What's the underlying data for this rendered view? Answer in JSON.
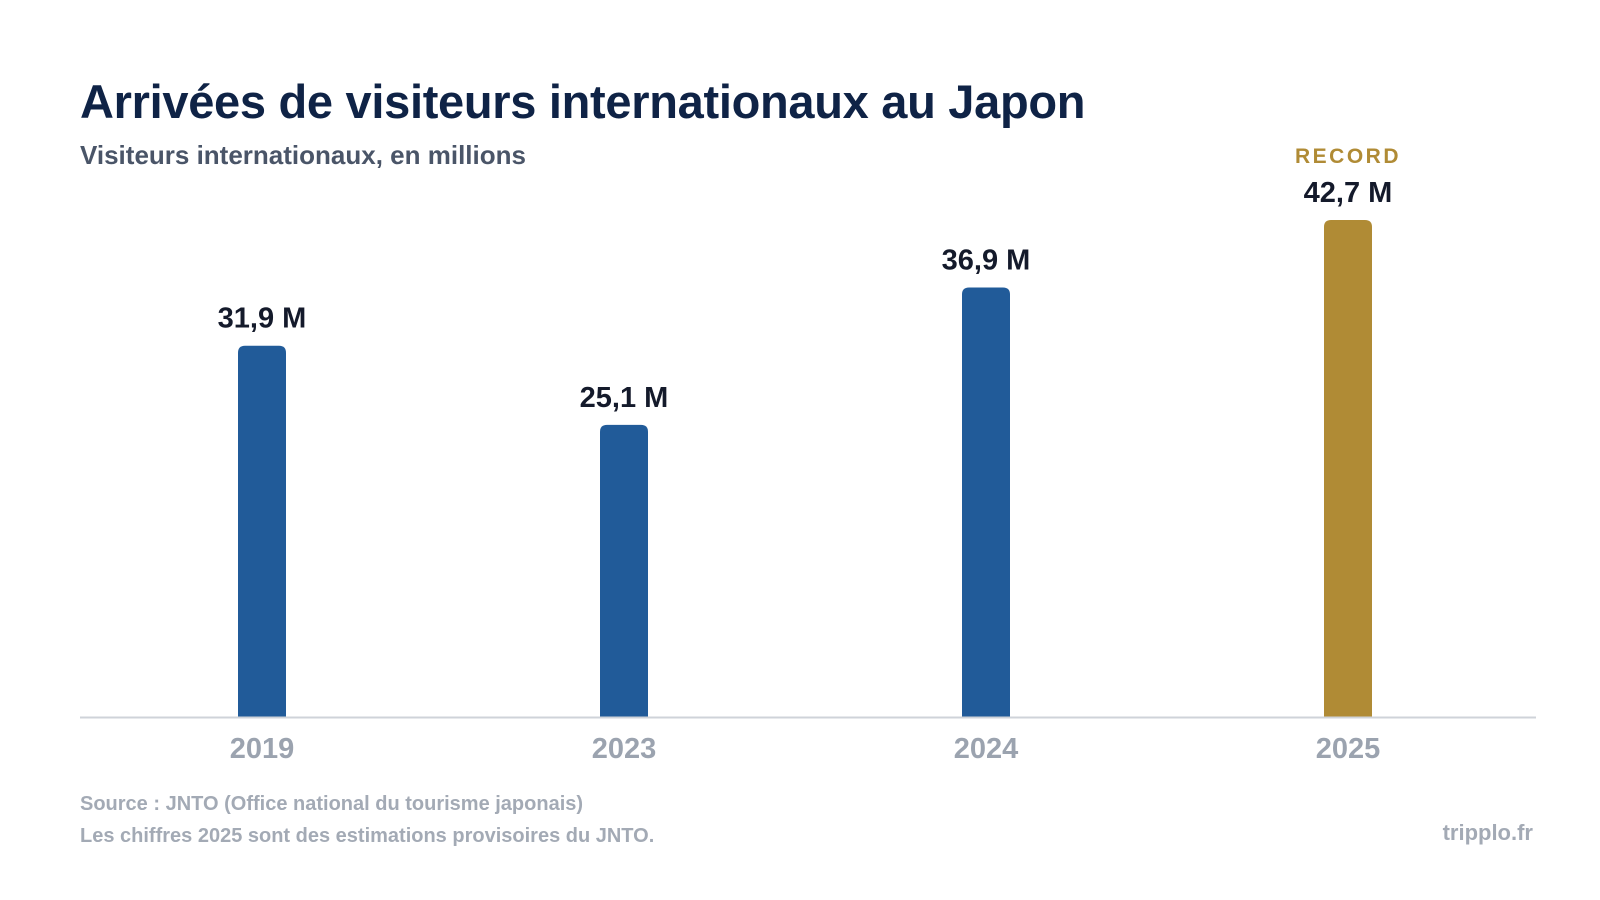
{
  "header": {
    "title": "Arrivées de visiteurs internationaux au Japon",
    "subtitle": "Visiteurs internationaux, en millions"
  },
  "chart_data": {
    "type": "bar",
    "categories": [
      "2019",
      "2023",
      "2024",
      "2025"
    ],
    "values": [
      31.9,
      25.1,
      36.9,
      42.7
    ],
    "value_labels": [
      "31,9 M",
      "25,1 M",
      "36,9 M",
      "42,7 M"
    ],
    "highlight": {
      "category": "2025",
      "annotation": "RECORD"
    },
    "colors": {
      "bar": "#215b99",
      "highlight": "#b08b35",
      "axis": "#cfd3d9"
    },
    "xlabel": "",
    "ylabel": "",
    "ylim": [
      0,
      42.7
    ],
    "grid": false,
    "legend": "none"
  },
  "footer": {
    "source_line": "Source : JNTO (Office national du tourisme japonais)",
    "note_line": "Les chiffres 2025 sont des estimations provisoires du JNTO.",
    "brand": "tripplo.fr"
  }
}
